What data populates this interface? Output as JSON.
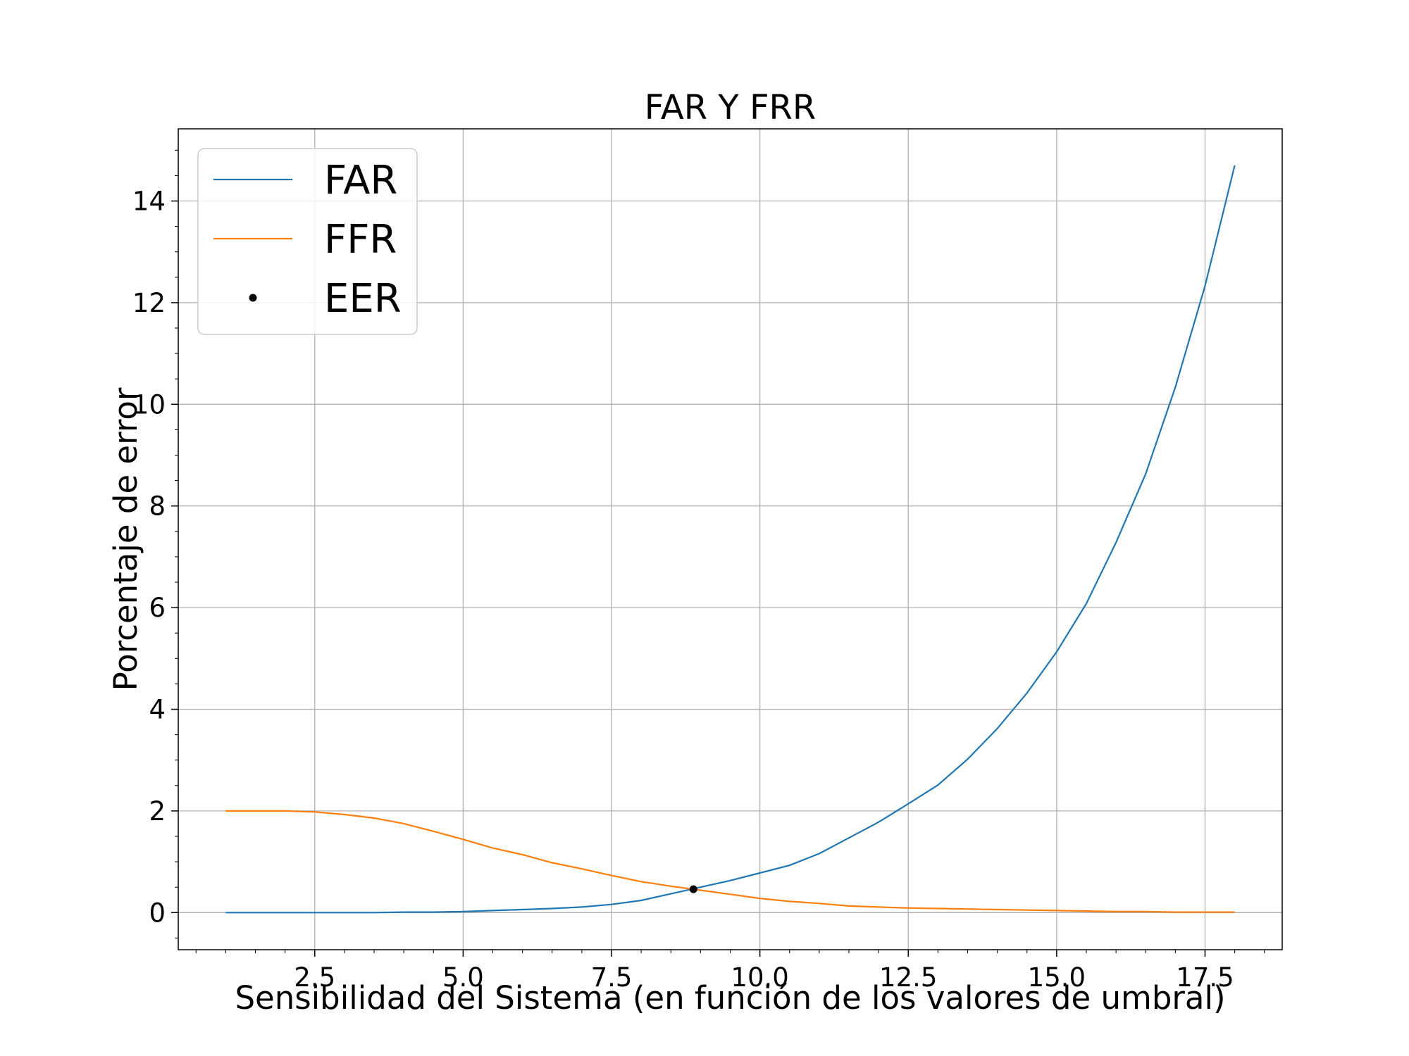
{
  "chart_data": {
    "type": "line",
    "title": "FAR Y FRR",
    "xlabel": "Sensibilidad del Sistema (en función de los valores de umbral)",
    "ylabel": "Porcentaje de error",
    "xlim": [
      0.2,
      18.8
    ],
    "ylim": [
      -0.73,
      15.42
    ],
    "xticks": [
      2.5,
      5.0,
      7.5,
      10.0,
      12.5,
      15.0,
      17.5
    ],
    "xtick_labels": [
      "2.5",
      "5.0",
      "7.5",
      "10.0",
      "12.5",
      "15.0",
      "17.5"
    ],
    "yticks": [
      0,
      2,
      4,
      6,
      8,
      10,
      12,
      14
    ],
    "ytick_labels": [
      "0",
      "2",
      "4",
      "6",
      "8",
      "10",
      "12",
      "14"
    ],
    "grid": true,
    "legend_position": "top-left",
    "x": [
      1,
      1.5,
      2,
      2.5,
      3,
      3.5,
      4,
      4.5,
      5,
      5.5,
      6,
      6.5,
      7,
      7.5,
      8,
      8.5,
      9,
      9.5,
      10,
      10.5,
      11,
      11.5,
      12,
      12.5,
      13,
      13.5,
      14,
      14.5,
      15,
      15.5,
      16,
      16.5,
      17,
      17.5,
      18
    ],
    "series": [
      {
        "name": "FAR",
        "color": "#1f77b4",
        "style": "line",
        "values": [
          0.0,
          0.0,
          0.0,
          0.0,
          0.0,
          0.0,
          0.01,
          0.01,
          0.02,
          0.04,
          0.06,
          0.08,
          0.11,
          0.16,
          0.24,
          0.37,
          0.5,
          0.63,
          0.78,
          0.93,
          1.16,
          1.47,
          1.78,
          2.14,
          2.51,
          3.02,
          3.62,
          4.32,
          5.13,
          6.08,
          7.28,
          8.63,
          10.34,
          12.33,
          14.7
        ]
      },
      {
        "name": "FFR",
        "color": "#ff7f0e",
        "style": "line",
        "values": [
          2.0,
          2.0,
          2.0,
          1.98,
          1.93,
          1.86,
          1.75,
          1.6,
          1.44,
          1.27,
          1.14,
          0.98,
          0.86,
          0.73,
          0.61,
          0.52,
          0.44,
          0.36,
          0.28,
          0.22,
          0.18,
          0.13,
          0.11,
          0.09,
          0.08,
          0.07,
          0.06,
          0.05,
          0.04,
          0.03,
          0.02,
          0.02,
          0.01,
          0.01,
          0.01
        ]
      },
      {
        "name": "EER",
        "color": "#000000",
        "style": "point",
        "points": [
          {
            "x": 8.88,
            "y": 0.46
          }
        ]
      }
    ]
  }
}
